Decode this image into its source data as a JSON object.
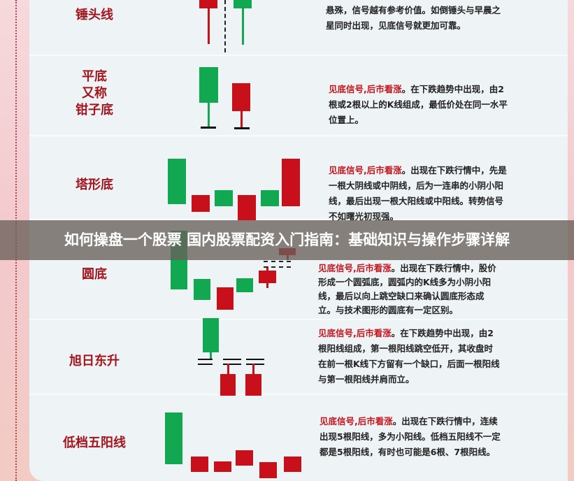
{
  "title": "如何操盘一个股票 国内股票配资入门指南：基础知识与操作步骤详解",
  "colors": {
    "bullish_red": "#c8101a",
    "bearish_green": "#12a852",
    "label_red": "#a3151d"
  },
  "patterns": [
    {
      "name": "锤头线",
      "highlight": "",
      "text": "悬殊，信号越有参考价值。如倒锤头与早晨之星同时出现，见底信号就更加可靠。"
    },
    {
      "name": "平底\n又称\n钳子底",
      "name_lines": [
        "平底",
        "又称",
        "钳子底"
      ],
      "highlight": "见底信号,后市看涨",
      "text": "。在下跌趋势中出现，由2根或2根以上的K线组成，最低价处在同一水平位置上。"
    },
    {
      "name": "塔形底",
      "highlight": "见底信号,后市看涨",
      "text": "。出现在下跌行情中，先是一根大阴线或中阴线，后为一连串的小阴小阳线，最后出现一根大阳线或中阳线。转势信号不如曙光初现强。"
    },
    {
      "name": "圆底",
      "highlight": "见底信号,后市看涨",
      "text": "。出现在下跌行情中，股价形成一个圆弧底，圆弧内的K线多为小阴小阳线，最后以向上跳空缺口来确认圆底形态成立。与技术图形的圆底有一定区别。"
    },
    {
      "name": "旭日东升",
      "highlight": "见底信号,后市看涨",
      "text": "。在下跌趋势中出现，由2根阳线组成，第一根阳线跳空低开，其收盘时在前一根K线下方留有一个缺口，后面一根阳线与第一根阳线并肩而立。"
    },
    {
      "name": "低档五阳线",
      "highlight": "见底信号,后市看涨",
      "text": "。出现在下跌行情中，连续出现5根阳线，多为小阳线。低档五阳线不一定都是5根阳线，有时也可能是6根、7根阳线。"
    }
  ]
}
